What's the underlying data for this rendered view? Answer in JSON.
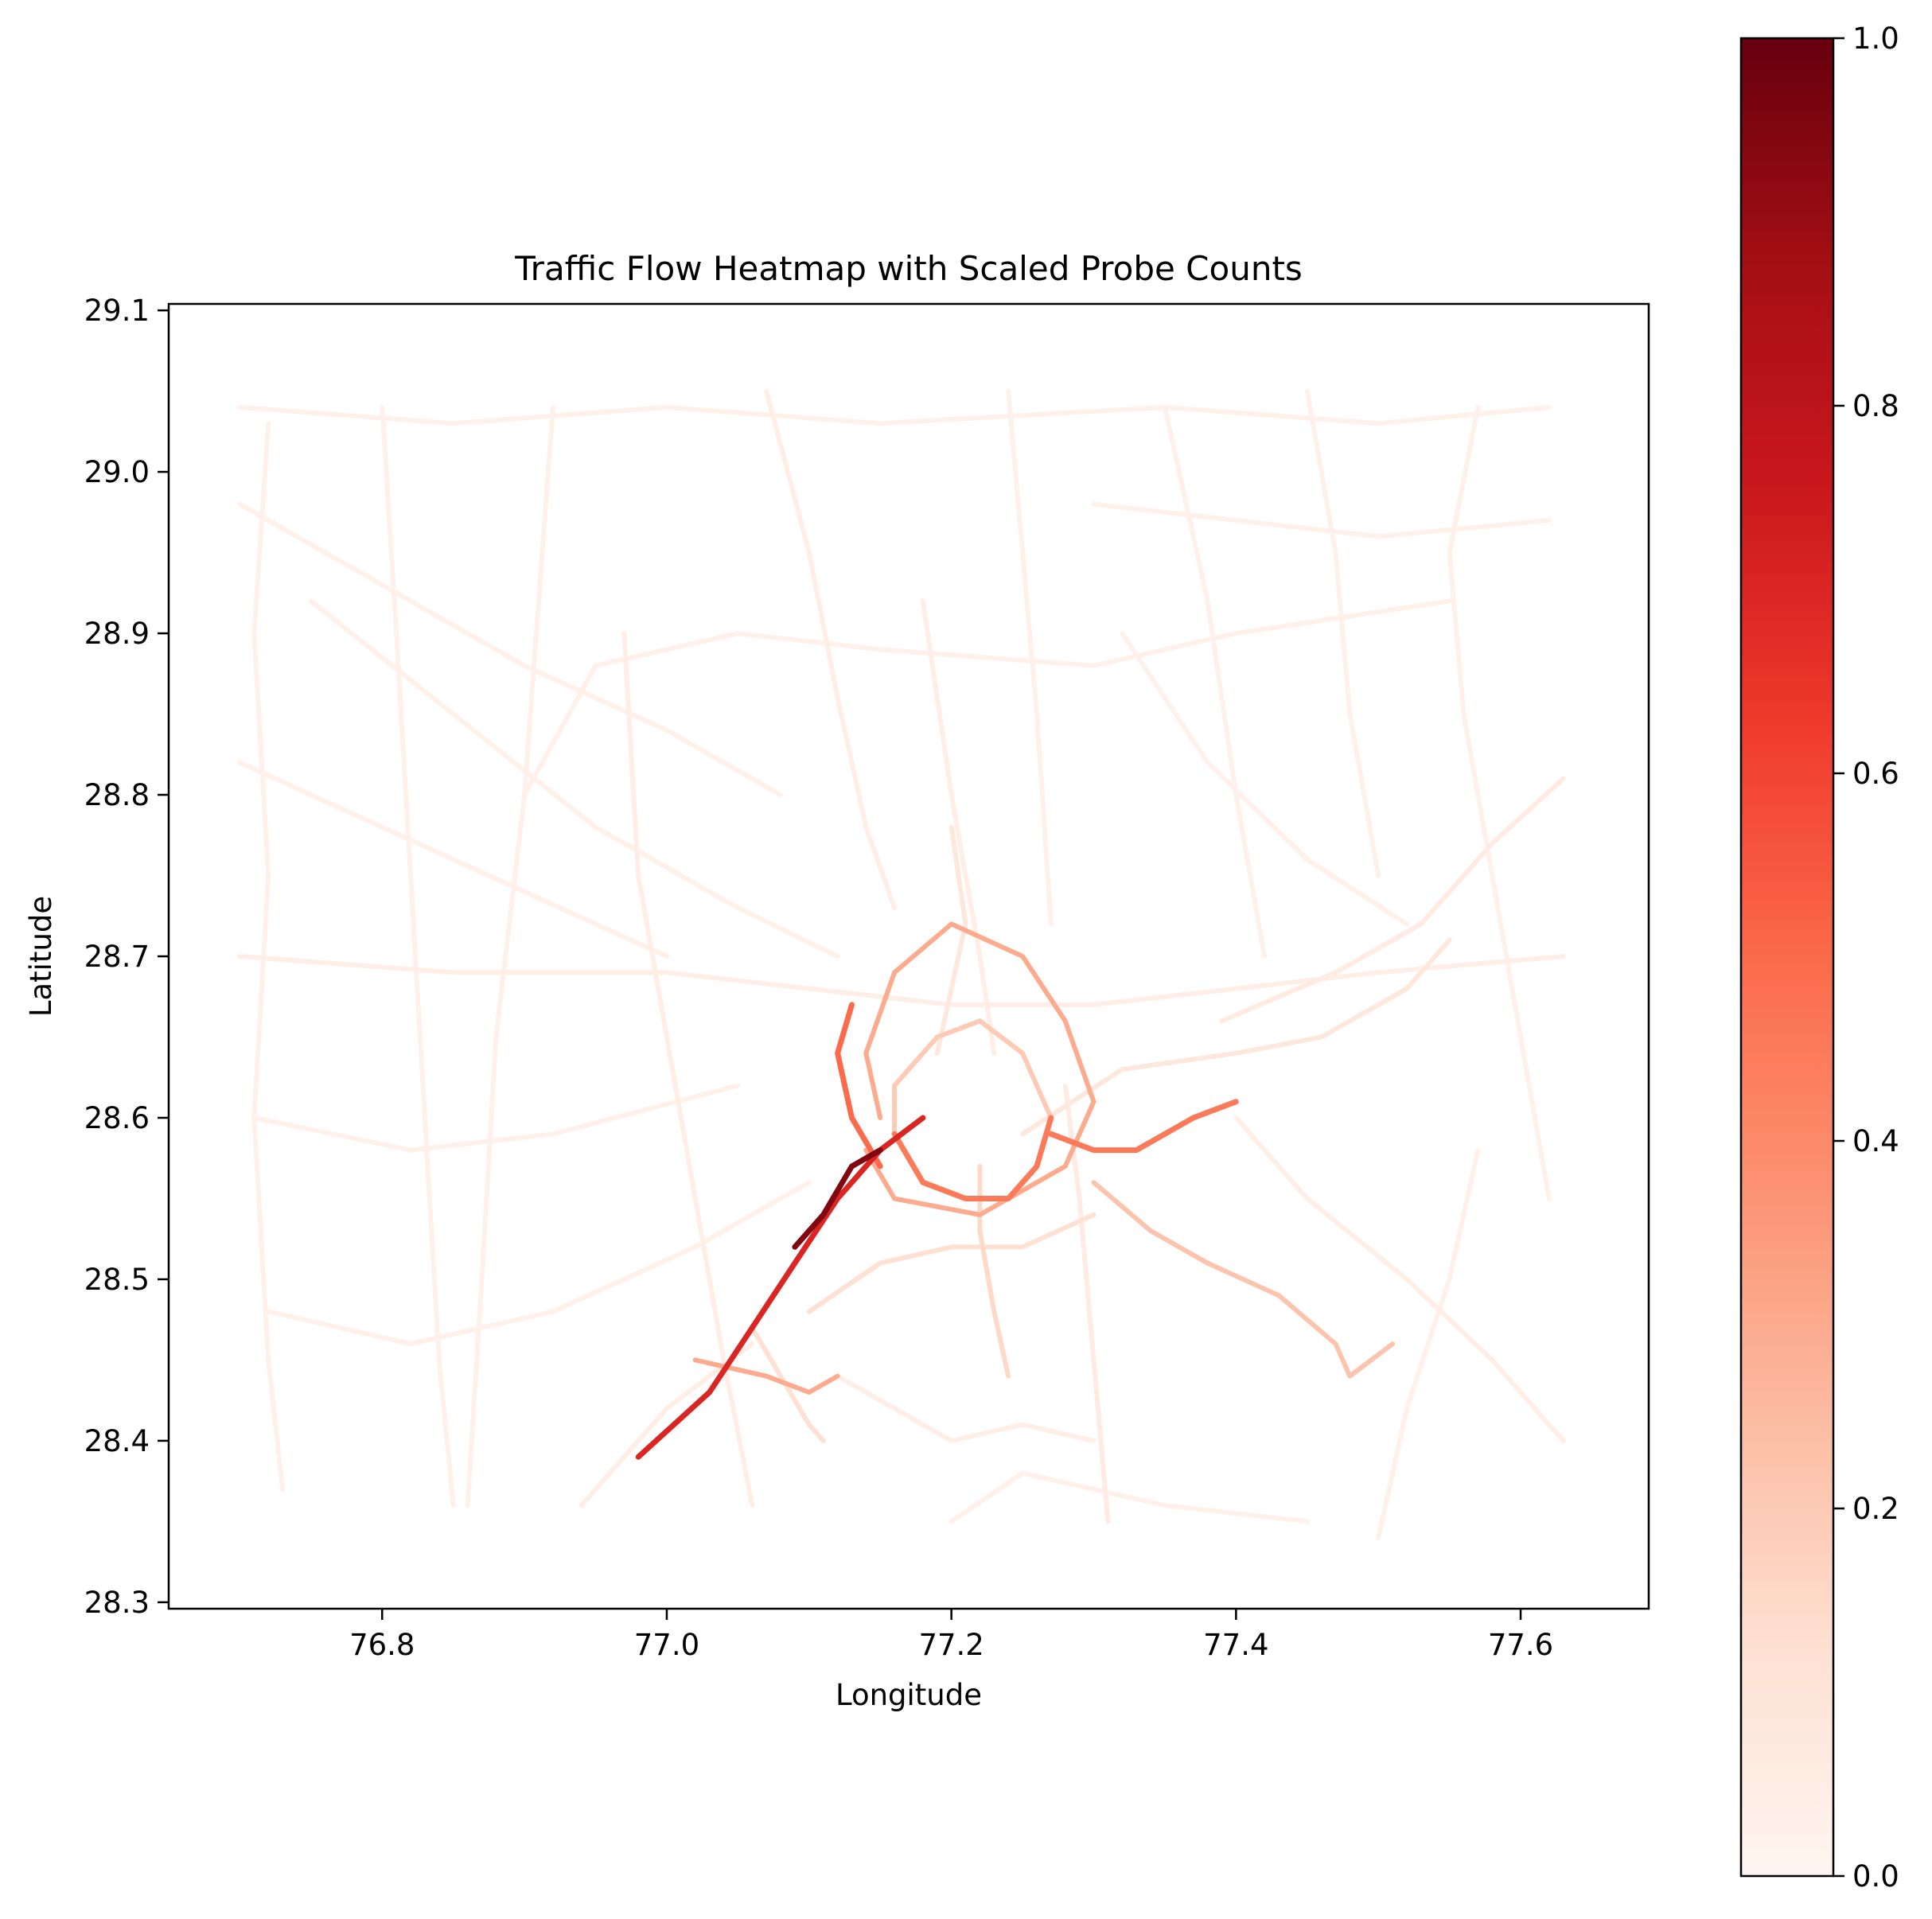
{
  "chart_data": {
    "type": "line",
    "title": "Traffic Flow Heatmap with Scaled Probe Counts",
    "xlabel": "Longitude",
    "ylabel": "Latitude",
    "xlim": [
      76.65,
      77.69
    ],
    "ylim": [
      28.296,
      29.104
    ],
    "x_ticks": [
      76.8,
      77.0,
      77.2,
      77.4,
      77.6
    ],
    "x_tick_labels": [
      "76.8",
      "77.0",
      "77.2",
      "77.4",
      "77.6"
    ],
    "y_ticks": [
      28.3,
      28.4,
      28.5,
      28.6,
      28.7,
      28.8,
      28.9,
      29.0,
      29.1
    ],
    "y_tick_labels": [
      "28.3",
      "28.4",
      "28.5",
      "28.6",
      "28.7",
      "28.8",
      "28.9",
      "29.0",
      "29.1"
    ],
    "grid": false,
    "colormap": "Reds",
    "colormap_stops": [
      "#fff5f0",
      "#fee0d2",
      "#fcbba1",
      "#fc9272",
      "#fb6a4a",
      "#ef3b2c",
      "#cb181d",
      "#a50f15",
      "#67000d"
    ],
    "colorbar": {
      "range": [
        0.0,
        1.0
      ],
      "ticks": [
        0.0,
        0.2,
        0.4,
        0.6,
        0.8,
        1.0
      ],
      "tick_labels": [
        "0.0",
        "0.2",
        "0.4",
        "0.6",
        "0.8",
        "1.0"
      ]
    },
    "series": [
      {
        "id": "nh-north",
        "value": 0.04,
        "points": [
          [
            77.07,
            29.05
          ],
          [
            77.1,
            28.95
          ],
          [
            77.12,
            28.86
          ],
          [
            77.14,
            28.78
          ],
          [
            77.16,
            28.73
          ]
        ]
      },
      {
        "id": "nh-west-main",
        "value": 0.04,
        "points": [
          [
            76.7,
            28.7
          ],
          [
            76.85,
            28.69
          ],
          [
            77.0,
            28.69
          ],
          [
            77.1,
            28.68
          ],
          [
            77.2,
            28.67
          ],
          [
            77.3,
            28.67
          ],
          [
            77.4,
            28.68
          ],
          [
            77.5,
            28.69
          ],
          [
            77.63,
            28.7
          ]
        ]
      },
      {
        "id": "ne-diagonal",
        "value": 0.06,
        "points": [
          [
            77.39,
            28.66
          ],
          [
            77.47,
            28.69
          ],
          [
            77.53,
            28.72
          ],
          [
            77.58,
            28.77
          ],
          [
            77.63,
            28.81
          ]
        ]
      },
      {
        "id": "east-arc",
        "value": 0.08,
        "points": [
          [
            77.25,
            28.59
          ],
          [
            77.32,
            28.63
          ],
          [
            77.4,
            28.64
          ],
          [
            77.46,
            28.65
          ],
          [
            77.52,
            28.68
          ],
          [
            77.55,
            28.71
          ]
        ]
      },
      {
        "id": "se-expressway",
        "value": 0.22,
        "points": [
          [
            77.3,
            28.56
          ],
          [
            77.34,
            28.53
          ],
          [
            77.38,
            28.51
          ],
          [
            77.43,
            28.49
          ],
          [
            77.47,
            28.46
          ],
          [
            77.48,
            28.44
          ],
          [
            77.51,
            28.46
          ]
        ]
      },
      {
        "id": "sw-expressway",
        "value": 0.7,
        "points": [
          [
            76.98,
            28.39
          ],
          [
            77.03,
            28.43
          ],
          [
            77.06,
            28.47
          ],
          [
            77.09,
            28.51
          ],
          [
            77.12,
            28.55
          ],
          [
            77.15,
            28.58
          ],
          [
            77.18,
            28.6
          ]
        ]
      },
      {
        "id": "sw-expressway-hot",
        "value": 0.95,
        "points": [
          [
            77.09,
            28.52
          ],
          [
            77.11,
            28.54
          ],
          [
            77.13,
            28.57
          ],
          [
            77.15,
            28.58
          ]
        ]
      },
      {
        "id": "ring-inner-south",
        "value": 0.45,
        "points": [
          [
            77.16,
            28.59
          ],
          [
            77.18,
            28.56
          ],
          [
            77.21,
            28.55
          ],
          [
            77.24,
            28.55
          ],
          [
            77.26,
            28.57
          ],
          [
            77.27,
            28.6
          ]
        ]
      },
      {
        "id": "ring-inner-north",
        "value": 0.2,
        "points": [
          [
            77.27,
            28.6
          ],
          [
            77.25,
            28.64
          ],
          [
            77.22,
            28.66
          ],
          [
            77.19,
            28.65
          ],
          [
            77.16,
            28.62
          ],
          [
            77.16,
            28.59
          ]
        ]
      },
      {
        "id": "ring-outer",
        "value": 0.3,
        "points": [
          [
            77.15,
            28.6
          ],
          [
            77.14,
            28.64
          ],
          [
            77.16,
            28.69
          ],
          [
            77.2,
            28.72
          ],
          [
            77.25,
            28.7
          ],
          [
            77.28,
            28.66
          ],
          [
            77.3,
            28.61
          ],
          [
            77.28,
            28.57
          ],
          [
            77.22,
            28.54
          ],
          [
            77.16,
            28.55
          ],
          [
            77.14,
            28.58
          ]
        ]
      },
      {
        "id": "ring-west",
        "value": 0.5,
        "points": [
          [
            77.15,
            28.57
          ],
          [
            77.13,
            28.6
          ],
          [
            77.12,
            28.64
          ],
          [
            77.13,
            28.67
          ]
        ]
      },
      {
        "id": "east-link",
        "value": 0.45,
        "points": [
          [
            77.27,
            28.59
          ],
          [
            77.3,
            28.58
          ],
          [
            77.33,
            28.58
          ],
          [
            77.37,
            28.6
          ],
          [
            77.4,
            28.61
          ]
        ]
      },
      {
        "id": "gurgaon-cross",
        "value": 0.3,
        "points": [
          [
            77.02,
            28.45
          ],
          [
            77.07,
            28.44
          ],
          [
            77.1,
            28.43
          ],
          [
            77.12,
            28.44
          ]
        ]
      },
      {
        "id": "south-road",
        "value": 0.12,
        "points": [
          [
            77.1,
            28.48
          ],
          [
            77.15,
            28.51
          ],
          [
            77.2,
            28.52
          ],
          [
            77.25,
            28.52
          ],
          [
            77.3,
            28.54
          ]
        ]
      },
      {
        "id": "south-arterial",
        "value": 0.06,
        "points": [
          [
            77.31,
            28.35
          ],
          [
            77.3,
            28.45
          ],
          [
            77.29,
            28.55
          ],
          [
            77.28,
            28.62
          ]
        ]
      },
      {
        "id": "north-east-road",
        "value": 0.04,
        "points": [
          [
            77.18,
            28.92
          ],
          [
            77.2,
            28.8
          ],
          [
            77.22,
            28.7
          ],
          [
            77.23,
            28.64
          ]
        ]
      },
      {
        "id": "north-road-2",
        "value": 0.03,
        "points": [
          [
            77.24,
            29.05
          ],
          [
            77.25,
            28.95
          ],
          [
            77.26,
            28.85
          ],
          [
            77.27,
            28.72
          ]
        ]
      },
      {
        "id": "west-road-1",
        "value": 0.03,
        "points": [
          [
            76.7,
            28.82
          ],
          [
            76.8,
            28.78
          ],
          [
            76.9,
            28.74
          ],
          [
            77.0,
            28.7
          ]
        ]
      },
      {
        "id": "west-road-2",
        "value": 0.03,
        "points": [
          [
            76.71,
            28.6
          ],
          [
            76.82,
            28.58
          ],
          [
            76.92,
            28.59
          ],
          [
            77.05,
            28.62
          ]
        ]
      },
      {
        "id": "west-road-3",
        "value": 0.03,
        "points": [
          [
            76.72,
            28.48
          ],
          [
            76.82,
            28.46
          ],
          [
            76.92,
            28.48
          ],
          [
            77.02,
            28.52
          ],
          [
            77.1,
            28.56
          ]
        ]
      },
      {
        "id": "sw-road",
        "value": 0.04,
        "points": [
          [
            76.94,
            28.36
          ],
          [
            77.0,
            28.42
          ],
          [
            77.06,
            28.46
          ]
        ]
      },
      {
        "id": "south-west-road",
        "value": 0.04,
        "points": [
          [
            77.06,
            28.36
          ],
          [
            77.04,
            28.45
          ],
          [
            77.02,
            28.55
          ],
          [
            77.0,
            28.65
          ],
          [
            76.98,
            28.75
          ],
          [
            76.97,
            28.9
          ]
        ]
      },
      {
        "id": "nw-road",
        "value": 0.03,
        "points": [
          [
            76.7,
            28.98
          ],
          [
            76.8,
            28.93
          ],
          [
            76.9,
            28.88
          ],
          [
            77.0,
            28.84
          ],
          [
            77.08,
            28.8
          ]
        ]
      },
      {
        "id": "north-arc",
        "value": 0.03,
        "points": [
          [
            76.9,
            28.8
          ],
          [
            76.95,
            28.88
          ],
          [
            77.05,
            28.9
          ],
          [
            77.15,
            28.89
          ],
          [
            77.3,
            28.88
          ],
          [
            77.4,
            28.9
          ],
          [
            77.55,
            28.92
          ]
        ]
      },
      {
        "id": "ne-road-1",
        "value": 0.03,
        "points": [
          [
            77.3,
            28.98
          ],
          [
            77.4,
            28.97
          ],
          [
            77.5,
            28.96
          ],
          [
            77.62,
            28.97
          ]
        ]
      },
      {
        "id": "ne-road-2",
        "value": 0.03,
        "points": [
          [
            77.35,
            29.04
          ],
          [
            77.38,
            28.92
          ],
          [
            77.4,
            28.8
          ],
          [
            77.42,
            28.7
          ]
        ]
      },
      {
        "id": "east-road-1",
        "value": 0.03,
        "points": [
          [
            77.45,
            29.05
          ],
          [
            77.47,
            28.95
          ],
          [
            77.48,
            28.85
          ],
          [
            77.5,
            28.75
          ]
        ]
      },
      {
        "id": "east-road-2",
        "value": 0.03,
        "points": [
          [
            77.57,
            29.04
          ],
          [
            77.55,
            28.95
          ],
          [
            77.56,
            28.85
          ],
          [
            77.58,
            28.75
          ],
          [
            77.6,
            28.65
          ],
          [
            77.62,
            28.55
          ]
        ]
      },
      {
        "id": "east-south-road",
        "value": 0.04,
        "points": [
          [
            77.4,
            28.6
          ],
          [
            77.45,
            28.55
          ],
          [
            77.52,
            28.5
          ],
          [
            77.58,
            28.45
          ],
          [
            77.63,
            28.4
          ]
        ]
      },
      {
        "id": "far-south-road",
        "value": 0.03,
        "points": [
          [
            77.2,
            28.35
          ],
          [
            77.25,
            28.38
          ],
          [
            77.35,
            28.36
          ],
          [
            77.45,
            28.35
          ]
        ]
      },
      {
        "id": "south-east-road",
        "value": 0.03,
        "points": [
          [
            77.5,
            28.34
          ],
          [
            77.52,
            28.42
          ],
          [
            77.55,
            28.5
          ],
          [
            77.57,
            28.58
          ]
        ]
      },
      {
        "id": "west-vert-1",
        "value": 0.03,
        "points": [
          [
            76.8,
            29.04
          ],
          [
            76.81,
            28.9
          ],
          [
            76.82,
            28.75
          ],
          [
            76.83,
            28.6
          ],
          [
            76.84,
            28.45
          ],
          [
            76.85,
            28.36
          ]
        ]
      },
      {
        "id": "west-vert-2",
        "value": 0.03,
        "points": [
          [
            76.92,
            29.04
          ],
          [
            76.91,
            28.92
          ],
          [
            76.9,
            28.8
          ],
          [
            76.88,
            28.65
          ],
          [
            76.87,
            28.5
          ],
          [
            76.86,
            28.36
          ]
        ]
      },
      {
        "id": "far-west-vert",
        "value": 0.03,
        "points": [
          [
            76.72,
            29.03
          ],
          [
            76.71,
            28.9
          ],
          [
            76.72,
            28.75
          ],
          [
            76.71,
            28.6
          ],
          [
            76.72,
            28.45
          ],
          [
            76.73,
            28.37
          ]
        ]
      },
      {
        "id": "north-horiz",
        "value": 0.03,
        "points": [
          [
            76.7,
            29.04
          ],
          [
            76.85,
            29.03
          ],
          [
            77.0,
            29.04
          ],
          [
            77.15,
            29.03
          ],
          [
            77.35,
            29.04
          ],
          [
            77.5,
            29.03
          ],
          [
            77.62,
            29.04
          ]
        ]
      },
      {
        "id": "mid-diagonal",
        "value": 0.03,
        "points": [
          [
            76.75,
            28.92
          ],
          [
            76.85,
            28.85
          ],
          [
            76.95,
            28.78
          ],
          [
            77.05,
            28.73
          ],
          [
            77.12,
            28.7
          ]
        ]
      },
      {
        "id": "south-curve",
        "value": 0.04,
        "points": [
          [
            77.12,
            28.44
          ],
          [
            77.16,
            28.42
          ],
          [
            77.2,
            28.4
          ],
          [
            77.25,
            28.41
          ],
          [
            77.3,
            28.4
          ]
        ]
      },
      {
        "id": "east-diag-2",
        "value": 0.03,
        "points": [
          [
            77.32,
            28.9
          ],
          [
            77.38,
            28.82
          ],
          [
            77.45,
            28.76
          ],
          [
            77.52,
            28.72
          ]
        ]
      },
      {
        "id": "center-north",
        "value": 0.08,
        "points": [
          [
            77.19,
            28.64
          ],
          [
            77.2,
            28.68
          ],
          [
            77.21,
            28.72
          ],
          [
            77.2,
            28.78
          ]
        ]
      },
      {
        "id": "center-south",
        "value": 0.15,
        "points": [
          [
            77.22,
            28.57
          ],
          [
            77.22,
            28.53
          ],
          [
            77.23,
            28.48
          ],
          [
            77.24,
            28.44
          ]
        ]
      },
      {
        "id": "gurgaon-local",
        "value": 0.12,
        "points": [
          [
            77.06,
            28.47
          ],
          [
            77.08,
            28.44
          ],
          [
            77.1,
            28.41
          ],
          [
            77.11,
            28.4
          ]
        ]
      }
    ]
  }
}
